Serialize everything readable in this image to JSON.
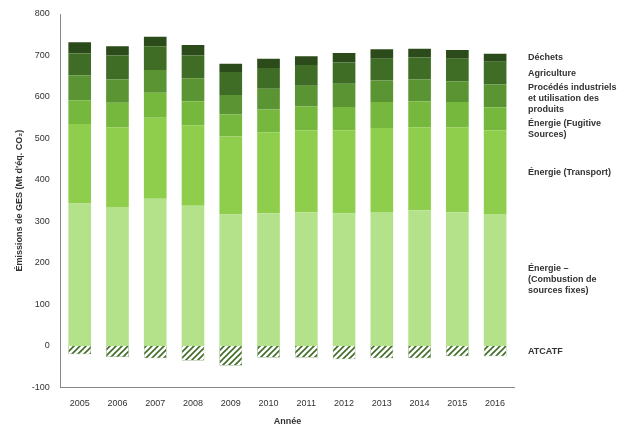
{
  "chart_data": {
    "type": "bar",
    "stacked": true,
    "grid": false,
    "x_label": "Année",
    "y_label": "Émissions de GES (Mt d'éq. CO₂)",
    "categories": [
      "2005",
      "2006",
      "2007",
      "2008",
      "2009",
      "2010",
      "2011",
      "2012",
      "2013",
      "2014",
      "2015",
      "2016"
    ],
    "ylim": [
      -100,
      800
    ],
    "yticks": [
      -100,
      0,
      100,
      200,
      300,
      400,
      500,
      600,
      700,
      800
    ],
    "series": [
      {
        "name": "Énergie – (Combustion de sources fixes)",
        "color": "#b3e28a",
        "values": [
          343,
          335,
          355,
          338,
          317,
          320,
          322,
          320,
          323,
          327,
          322,
          318
        ]
      },
      {
        "name": "Énergie (Transport)",
        "color": "#8fce4c",
        "values": [
          192,
          192,
          195,
          194,
          188,
          195,
          198,
          200,
          202,
          200,
          205,
          202
        ]
      },
      {
        "name": "Énergie (Fugitive Sources)",
        "color": "#76b83e",
        "values": [
          57,
          59,
          60,
          58,
          53,
          55,
          57,
          56,
          63,
          63,
          61,
          55
        ]
      },
      {
        "name": "Procédés industriels et utilisation des produits",
        "color": "#5a9433",
        "values": [
          60,
          56,
          55,
          55,
          47,
          50,
          50,
          56,
          52,
          53,
          50,
          55
        ]
      },
      {
        "name": "Agriculture",
        "color": "#3f6d25",
        "values": [
          53,
          58,
          57,
          55,
          55,
          50,
          50,
          51,
          52,
          52,
          54,
          55
        ]
      },
      {
        "name": "Déchets",
        "color": "#2c4b1a",
        "values": [
          27,
          22,
          23,
          25,
          20,
          22,
          21,
          23,
          23,
          21,
          21,
          19
        ]
      },
      {
        "name": "ATCATF",
        "color": "#3f6d25",
        "values": [
          -20,
          -27,
          -30,
          -35,
          -47,
          -28,
          -28,
          -32,
          -30,
          -30,
          -25,
          -25
        ]
      }
    ]
  }
}
